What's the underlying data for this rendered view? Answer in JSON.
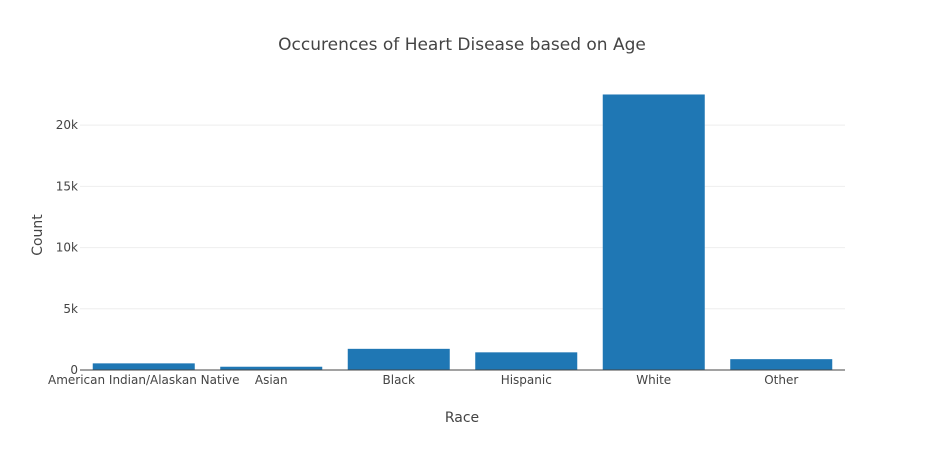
{
  "chart_data": {
    "type": "bar",
    "title": "Occurences of Heart Disease based on Age",
    "xlabel": "Race",
    "ylabel": "Count",
    "categories": [
      "American Indian/Alaskan Native",
      "Asian",
      "Black",
      "Hispanic",
      "White",
      "Other"
    ],
    "values": [
      542,
      267,
      1729,
      1443,
      22507,
      886
    ],
    "ylim": [
      0,
      23690
    ],
    "yticks": [
      0,
      5000,
      10000,
      15000,
      20000
    ],
    "ytick_labels": [
      "0",
      "5k",
      "10k",
      "15k",
      "20k"
    ],
    "grid": true,
    "bar_color": "#1f77b4"
  }
}
